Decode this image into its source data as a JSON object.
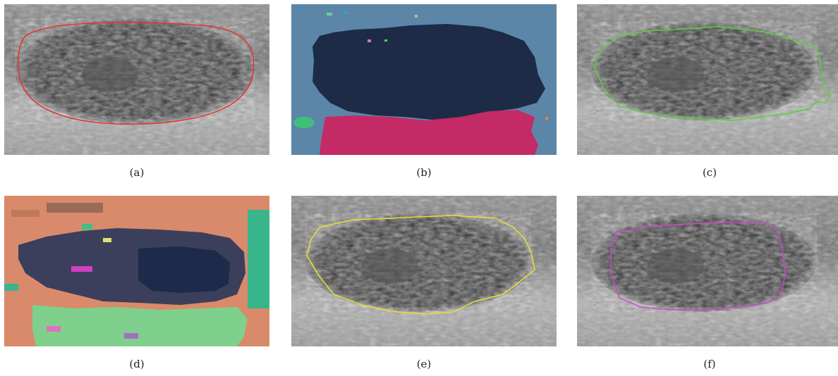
{
  "panels": [
    {
      "id": "a",
      "caption": "(a)",
      "kind": "ultrasound",
      "contour_color": "#e8302a"
    },
    {
      "id": "b",
      "caption": "(b)",
      "kind": "segmentation-map",
      "colors": {
        "background": "#5b86a8",
        "region_dark": "#1d2b46",
        "region_bottom": "#c42a66",
        "blob": "#3fbf7a"
      }
    },
    {
      "id": "c",
      "caption": "(c)",
      "kind": "ultrasound",
      "contour_color": "#5cd03a"
    },
    {
      "id": "d",
      "caption": "(d)",
      "kind": "segmentation-map",
      "colors": {
        "background": "#d98a6a",
        "region_mid": "#3b3f5c",
        "region_core": "#1e2a4a",
        "region_bottom": "#7fd08c",
        "region_side": "#38b58a"
      }
    },
    {
      "id": "e",
      "caption": "(e)",
      "kind": "ultrasound",
      "contour_color": "#e8e030"
    },
    {
      "id": "f",
      "caption": "(f)",
      "kind": "ultrasound",
      "contour_color": "#c84ac8"
    }
  ]
}
